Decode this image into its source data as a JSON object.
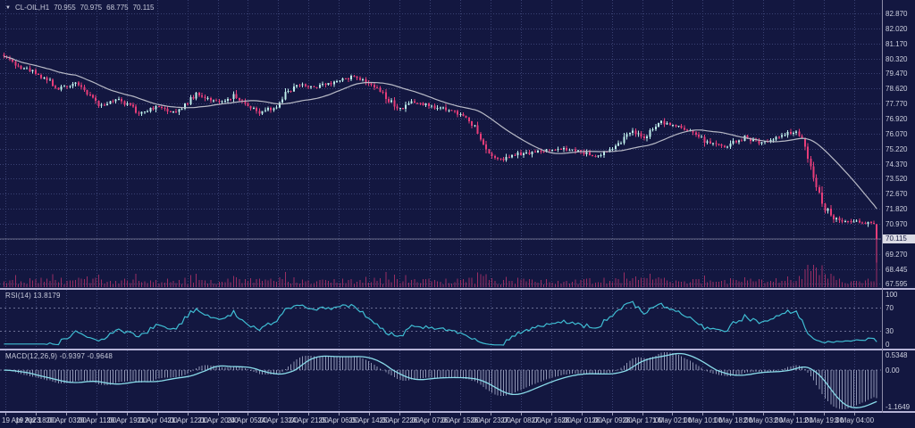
{
  "header": {
    "symbol": "CL-OIL,H1",
    "open": "70.955",
    "high": "70.975",
    "low": "68.775",
    "close": "70.115"
  },
  "pane_labels": {
    "rsi": "RSI(14) 13.8179",
    "macd": "MACD(12,26,9) -0.9397 -0.9648"
  },
  "price_tag": "70.115",
  "colors": {
    "background": "#131740",
    "grid": "#3a4173",
    "bull_candle": "#bdeeea",
    "bear_candle": "#e73d79",
    "ma_line": "#b8bac6",
    "volume": "#992e63",
    "separator": "#b5b3d6",
    "rsi_line": "#3fbdd3",
    "macd_signal_line": "#8adcea",
    "macd_histogram": "#b9c0da",
    "axis_text": "#cfd2e0",
    "price_tag_bg": "#dcdce6",
    "level_line": "#6b6f94",
    "current_price_line": "#8a8aa2"
  },
  "chart_data": {
    "type": "candlestick",
    "symbol": "CL-OIL",
    "timeframe": "H1",
    "title": "CL-OIL,H1",
    "last_bar_ohlc": {
      "open": 70.955,
      "high": 70.975,
      "low": 68.775,
      "close": 70.115
    },
    "current_price": 70.115,
    "bar_count": 305,
    "price_axis_ticks": [
      "82.870",
      "82.020",
      "81.170",
      "80.320",
      "79.470",
      "78.620",
      "77.770",
      "76.920",
      "76.070",
      "75.220",
      "74.370",
      "73.520",
      "72.670",
      "71.820",
      "70.970",
      "69.270",
      "68.445",
      "67.595"
    ],
    "price_tick_step": 0.85,
    "time_axis_labels": [
      "19 Apr 2023",
      "19 Apr 18:00",
      "20 Apr 03:00",
      "20 Apr 11:00",
      "20 Apr 19:00",
      "21 Apr 04:00",
      "21 Apr 12:00",
      "21 Apr 20:00",
      "24 Apr 05:00",
      "24 Apr 13:00",
      "24 Apr 21:00",
      "25 Apr 06:00",
      "25 Apr 14:00",
      "25 Apr 22:00",
      "26 Apr 07:00",
      "26 Apr 15:00",
      "26 Apr 23:00",
      "27 Apr 08:00",
      "27 Apr 16:00",
      "28 Apr 01:00",
      "28 Apr 09:00",
      "28 Apr 17:00",
      "1 May 02:00",
      "1 May 10:00",
      "1 May 18:00",
      "2 May 03:00",
      "2 May 11:00",
      "2 May 19:00",
      "3 May 04:00"
    ],
    "price_path_anchors": [
      [
        0,
        80.55
      ],
      [
        4,
        79.95
      ],
      [
        11,
        79.55
      ],
      [
        19,
        78.65
      ],
      [
        25,
        78.9
      ],
      [
        34,
        77.65
      ],
      [
        40,
        78.05
      ],
      [
        47,
        77.25
      ],
      [
        53,
        77.55
      ],
      [
        60,
        77.3
      ],
      [
        67,
        78.25
      ],
      [
        75,
        77.85
      ],
      [
        80,
        78.2
      ],
      [
        89,
        77.3
      ],
      [
        95,
        77.55
      ],
      [
        101,
        78.85
      ],
      [
        109,
        78.7
      ],
      [
        116,
        79.05
      ],
      [
        122,
        79.3
      ],
      [
        127,
        79.0
      ],
      [
        132,
        78.35
      ],
      [
        138,
        77.35
      ],
      [
        143,
        77.9
      ],
      [
        151,
        77.55
      ],
      [
        157,
        77.35
      ],
      [
        163,
        76.6
      ],
      [
        168,
        75.0
      ],
      [
        173,
        74.55
      ],
      [
        179,
        74.9
      ],
      [
        186,
        75.05
      ],
      [
        193,
        75.25
      ],
      [
        200,
        75.05
      ],
      [
        207,
        74.8
      ],
      [
        213,
        75.45
      ],
      [
        219,
        76.15
      ],
      [
        223,
        75.85
      ],
      [
        229,
        76.75
      ],
      [
        234,
        76.5
      ],
      [
        239,
        76.15
      ],
      [
        245,
        75.55
      ],
      [
        251,
        75.3
      ],
      [
        258,
        75.85
      ],
      [
        264,
        75.55
      ],
      [
        270,
        75.9
      ],
      [
        275,
        76.2
      ],
      [
        279,
        75.5
      ],
      [
        282,
        73.6
      ],
      [
        285,
        72.2
      ],
      [
        288,
        71.35
      ],
      [
        293,
        71.05
      ],
      [
        297,
        71.15
      ],
      [
        301,
        71.0
      ],
      [
        303,
        70.95
      ],
      [
        304,
        70.115
      ]
    ],
    "indicators": {
      "moving_average": {
        "shown": true
      },
      "volume": {
        "shown": true
      },
      "rsi": {
        "period": 14,
        "current_value": 13.8179,
        "scale_labels": [
          "100",
          "70",
          "30",
          "0"
        ],
        "levels": [
          70,
          30
        ]
      },
      "macd": {
        "fast": 12,
        "slow": 26,
        "signal_period": 9,
        "current_main": -0.9397,
        "current_signal": -0.9648,
        "scale_max": 0.5348,
        "scale_zero": "0.00",
        "scale_min": -1.1649
      }
    },
    "legend_position": "none",
    "grid": true
  }
}
